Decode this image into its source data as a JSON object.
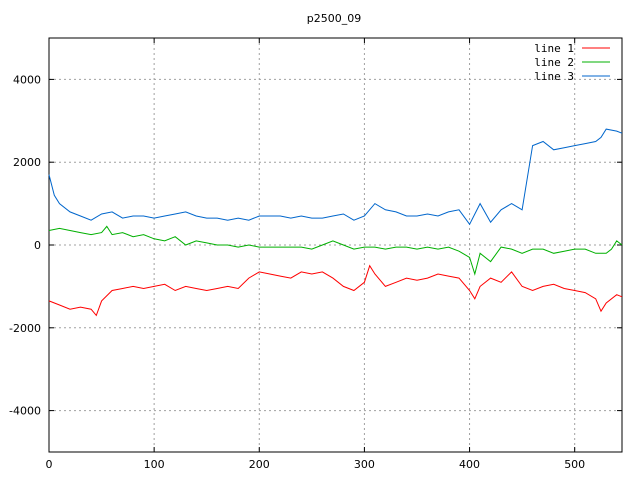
{
  "chart_data": {
    "type": "line",
    "title": "p2500_09",
    "xlabel": "",
    "ylabel": "",
    "xlim": [
      0,
      545
    ],
    "ylim": [
      -5000,
      5000
    ],
    "x_ticks": [
      0,
      100,
      200,
      300,
      400,
      500
    ],
    "y_ticks": [
      -4000,
      -2000,
      0,
      2000,
      4000
    ],
    "grid": true,
    "legend_position": "top-right",
    "series": [
      {
        "name": "line 1",
        "color": "#ff0000",
        "x": [
          0,
          10,
          20,
          30,
          40,
          45,
          50,
          60,
          70,
          80,
          90,
          100,
          110,
          120,
          130,
          140,
          150,
          160,
          170,
          180,
          190,
          200,
          210,
          220,
          230,
          240,
          250,
          260,
          270,
          280,
          290,
          300,
          305,
          310,
          320,
          330,
          340,
          350,
          360,
          370,
          380,
          390,
          400,
          405,
          410,
          420,
          430,
          440,
          450,
          460,
          470,
          480,
          490,
          500,
          510,
          520,
          525,
          530,
          540,
          545
        ],
        "y": [
          -1350,
          -1450,
          -1550,
          -1500,
          -1550,
          -1700,
          -1350,
          -1100,
          -1050,
          -1000,
          -1050,
          -1000,
          -950,
          -1100,
          -1000,
          -1050,
          -1100,
          -1050,
          -1000,
          -1050,
          -800,
          -650,
          -700,
          -750,
          -800,
          -650,
          -700,
          -650,
          -800,
          -1000,
          -1100,
          -900,
          -500,
          -700,
          -1000,
          -900,
          -800,
          -850,
          -800,
          -700,
          -750,
          -800,
          -1100,
          -1300,
          -1000,
          -800,
          -900,
          -650,
          -1000,
          -1100,
          -1000,
          -950,
          -1050,
          -1100,
          -1150,
          -1300,
          -1600,
          -1400,
          -1200,
          -1250
        ]
      },
      {
        "name": "line 2",
        "color": "#00b000",
        "x": [
          0,
          10,
          20,
          30,
          40,
          50,
          55,
          60,
          70,
          80,
          90,
          100,
          110,
          120,
          130,
          140,
          150,
          160,
          170,
          180,
          190,
          200,
          210,
          220,
          230,
          240,
          250,
          260,
          270,
          280,
          290,
          300,
          310,
          320,
          330,
          340,
          350,
          360,
          370,
          380,
          390,
          400,
          405,
          410,
          420,
          430,
          440,
          450,
          460,
          470,
          480,
          490,
          500,
          510,
          520,
          530,
          535,
          540,
          545
        ],
        "y": [
          350,
          400,
          350,
          300,
          250,
          300,
          450,
          250,
          300,
          200,
          250,
          150,
          100,
          200,
          0,
          100,
          50,
          0,
          0,
          -50,
          0,
          -50,
          -50,
          -50,
          -50,
          -50,
          -100,
          0,
          100,
          0,
          -100,
          -50,
          -50,
          -100,
          -50,
          -50,
          -100,
          -50,
          -100,
          -50,
          -150,
          -300,
          -700,
          -200,
          -400,
          -50,
          -100,
          -200,
          -100,
          -100,
          -200,
          -150,
          -100,
          -100,
          -200,
          -200,
          -100,
          100,
          0
        ]
      },
      {
        "name": "line 3",
        "color": "#0066cc",
        "x": [
          0,
          5,
          10,
          20,
          30,
          40,
          50,
          60,
          70,
          80,
          90,
          100,
          110,
          120,
          130,
          140,
          150,
          160,
          170,
          180,
          190,
          200,
          210,
          220,
          230,
          240,
          250,
          260,
          270,
          280,
          290,
          300,
          310,
          320,
          330,
          340,
          350,
          360,
          370,
          380,
          390,
          400,
          410,
          420,
          430,
          440,
          450,
          460,
          470,
          480,
          490,
          500,
          510,
          520,
          525,
          530,
          540,
          545
        ],
        "y": [
          1700,
          1200,
          1000,
          800,
          700,
          600,
          750,
          800,
          650,
          700,
          700,
          650,
          700,
          750,
          800,
          700,
          650,
          650,
          600,
          650,
          600,
          700,
          700,
          700,
          650,
          700,
          650,
          650,
          700,
          750,
          600,
          700,
          1000,
          850,
          800,
          700,
          700,
          750,
          700,
          800,
          850,
          500,
          1000,
          550,
          850,
          1000,
          850,
          2400,
          2500,
          2300,
          2350,
          2400,
          2450,
          2500,
          2600,
          2800,
          2750,
          2700
        ]
      }
    ]
  }
}
